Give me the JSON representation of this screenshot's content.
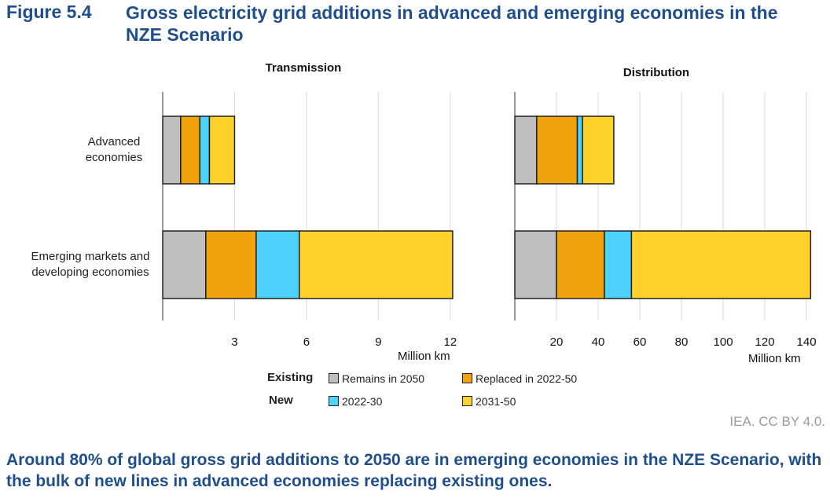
{
  "figure": {
    "number": "Figure 5.4",
    "title": "Gross electricity grid additions in advanced and emerging economies in the NZE Scenario",
    "credit": "IEA. CC BY 4.0.",
    "caption": "Around 80% of global gross grid additions to 2050 are in emerging economies in the NZE Scenario, with the bulk of new lines in advanced economies replacing existing ones."
  },
  "categories": [
    "Advanced economies",
    "Emerging markets and developing economies"
  ],
  "legend": {
    "existing_label": "Existing",
    "new_label": "New",
    "items": [
      {
        "name": "Remains in 2050",
        "color": "#bfbfbf"
      },
      {
        "name": "Replaced in 2022-50",
        "color": "#f0a30a"
      },
      {
        "name": "2022-30",
        "color": "#4dd2fb"
      },
      {
        "name": "2031-50",
        "color": "#fdd22b"
      }
    ]
  },
  "chart_data": [
    {
      "type": "bar",
      "orientation": "horizontal",
      "stacked": true,
      "title": "Transmission",
      "xlabel": "Million km",
      "xlim": [
        0,
        12.3
      ],
      "ticks": [
        3,
        6,
        9,
        12
      ],
      "categories": [
        "Advanced economies",
        "Emerging markets and developing economies"
      ],
      "series": [
        {
          "name": "Remains in 2050",
          "values": [
            0.75,
            1.8
          ]
        },
        {
          "name": "Replaced in 2022-50",
          "values": [
            0.8,
            2.1
          ]
        },
        {
          "name": "2022-30",
          "values": [
            0.4,
            1.8
          ]
        },
        {
          "name": "2031-50",
          "values": [
            1.05,
            6.4
          ]
        }
      ],
      "grid": true
    },
    {
      "type": "bar",
      "orientation": "horizontal",
      "stacked": true,
      "title": "Distribution",
      "xlabel": "Million km",
      "xlim": [
        0,
        143
      ],
      "ticks": [
        20,
        40,
        60,
        80,
        100,
        120,
        140
      ],
      "categories": [
        "Advanced economies",
        "Emerging markets and developing economies"
      ],
      "series": [
        {
          "name": "Remains in 2050",
          "values": [
            10.5,
            20
          ]
        },
        {
          "name": "Replaced in 2022-50",
          "values": [
            19.5,
            23
          ]
        },
        {
          "name": "2022-30",
          "values": [
            2.5,
            13
          ]
        },
        {
          "name": "2031-50",
          "values": [
            15,
            86
          ]
        }
      ],
      "grid": true
    }
  ]
}
